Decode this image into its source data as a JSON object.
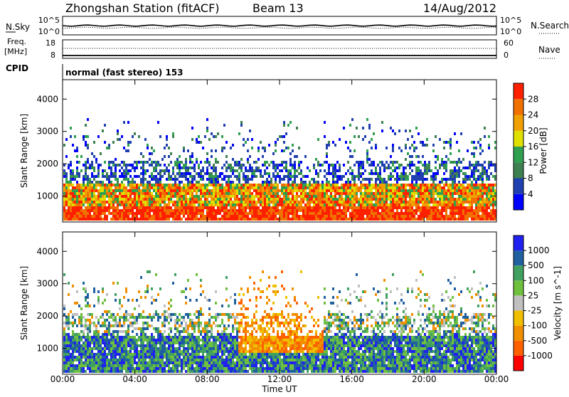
{
  "header": {
    "title": "Zhongshan Station (fitACF)",
    "beam": "Beam 13",
    "date": "14/Aug/2012"
  },
  "panels": {
    "nsky": {
      "label": "N.Sky",
      "ytick_top": "10^5",
      "ytick_bottom": "10^0",
      "right_label": "N.Search",
      "right_tick_top": "10^5",
      "right_tick_bottom": "10^0"
    },
    "freq": {
      "label_line1": "Freq.",
      "label_line2": "[MHz]",
      "ytick_top": "18",
      "ytick_bottom": "8",
      "right_label": "Nave",
      "right_tick_top": "60",
      "right_tick_bottom": "0"
    },
    "cpid": {
      "label": "CPID",
      "text": "normal (fast stereo) 153"
    }
  },
  "colors": {
    "power": [
      "#0000ff",
      "#2040b0",
      "#3f8050",
      "#2fa050",
      "#e0e000",
      "#f0a000",
      "#f07000",
      "#ff2000"
    ],
    "velocity": [
      "#ff0000",
      "#ff6000",
      "#f09000",
      "#f0c000",
      "#c0c0c0",
      "#70c040",
      "#40a060",
      "#2060a0",
      "#2020f0"
    ]
  },
  "chart_data": [
    {
      "type": "heatmap",
      "name": "power",
      "ylabel": "Slant Range [km]",
      "yticks": [
        "1000",
        "2000",
        "3000",
        "4000"
      ],
      "ylim": [
        200,
        4600
      ],
      "xticks": [
        "00:00",
        "04:00",
        "08:00",
        "12:00",
        "16:00",
        "20:00",
        "00:00"
      ],
      "colorbar_label": "Power [dB]",
      "colorbar_ticks": [
        "4",
        "8",
        "12",
        "16",
        "20",
        "24",
        "28"
      ]
    },
    {
      "type": "heatmap",
      "name": "velocity",
      "ylabel": "Slant Range [km]",
      "yticks": [
        "1000",
        "2000",
        "3000",
        "4000"
      ],
      "ylim": [
        200,
        4600
      ],
      "xticks": [
        "00:00",
        "04:00",
        "08:00",
        "12:00",
        "16:00",
        "20:00",
        "00:00"
      ],
      "xlabel": "Time UT",
      "colorbar_label": "Velocity [m s^-1]",
      "colorbar_ticks": [
        "-1000",
        "-500",
        "-100",
        "-25",
        "25",
        "100",
        "500",
        "1000"
      ]
    }
  ]
}
